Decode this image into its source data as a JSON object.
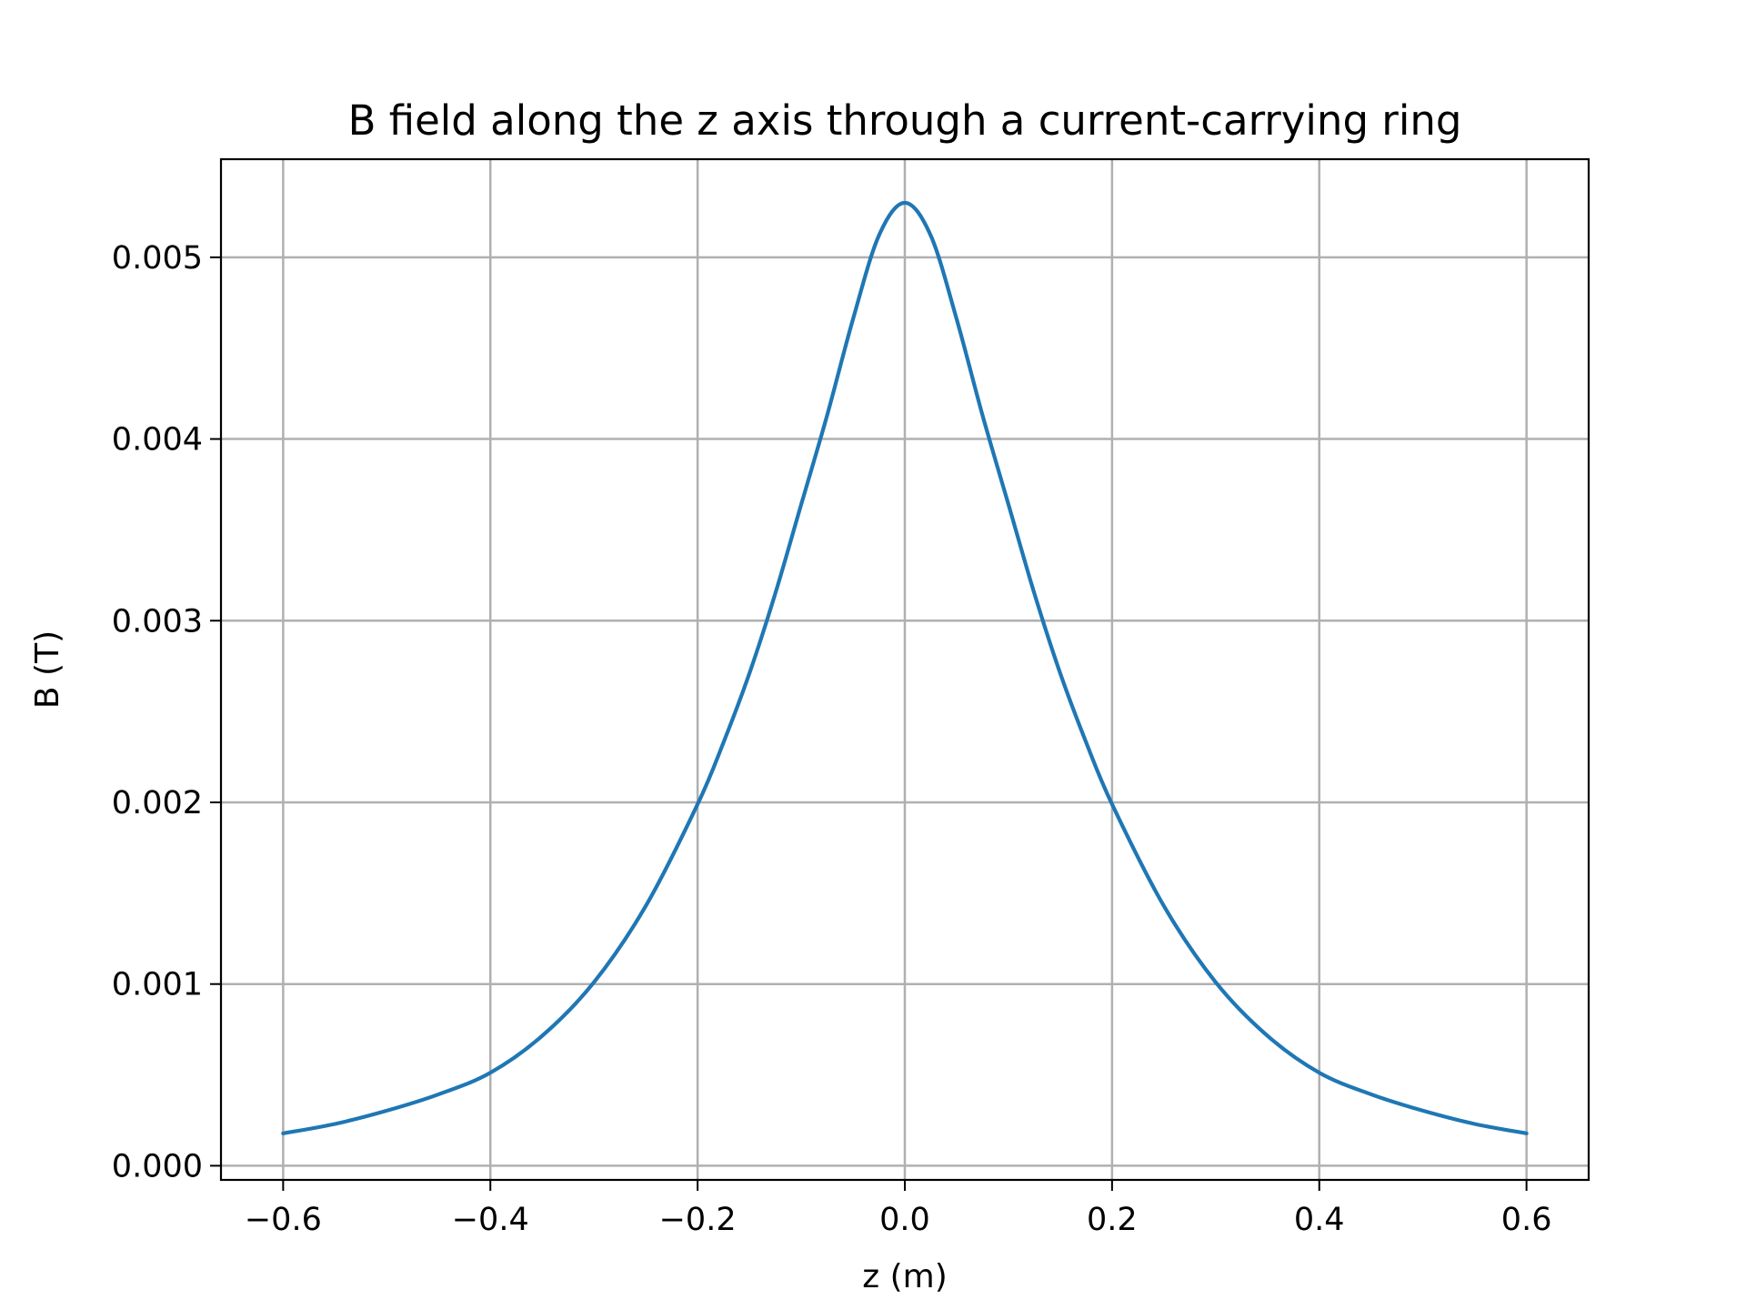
{
  "chart_data": {
    "type": "line",
    "title": "B field along the z axis through a current-carrying ring",
    "xlabel": "z (m)",
    "ylabel": "B (T)",
    "xlim": [
      -0.66,
      0.66
    ],
    "ylim": [
      -7.8e-05,
      0.00554
    ],
    "xticks": [
      -0.6,
      -0.4,
      -0.2,
      0.0,
      0.2,
      0.4,
      0.6
    ],
    "xtick_labels": [
      "−0.6",
      "−0.4",
      "−0.2",
      "0.0",
      "0.2",
      "0.4",
      "0.6"
    ],
    "yticks": [
      0.0,
      0.001,
      0.002,
      0.003,
      0.004,
      0.005
    ],
    "ytick_labels": [
      "0.000",
      "0.001",
      "0.002",
      "0.003",
      "0.004",
      "0.005"
    ],
    "grid": true,
    "colors": {
      "series": "#1f77b4",
      "grid": "#b0b0b0",
      "axes": "#000000"
    },
    "series": [
      {
        "x": [
          -0.6,
          -0.55,
          -0.5,
          -0.45,
          -0.4,
          -0.35,
          -0.3,
          -0.25,
          -0.2,
          -0.175,
          -0.15,
          -0.125,
          -0.1,
          -0.075,
          -0.05,
          -0.025,
          0.0,
          0.025,
          0.05,
          0.075,
          0.1,
          0.125,
          0.15,
          0.175,
          0.2,
          0.25,
          0.3,
          0.35,
          0.4,
          0.45,
          0.5,
          0.55,
          0.6
        ],
        "y": [
          0.000178,
          0.00023,
          0.000303,
          0.000393,
          0.000512,
          0.000715,
          0.00101,
          0.00143,
          0.00199,
          0.00233,
          0.00271,
          0.00315,
          0.00364,
          0.00413,
          0.00466,
          0.00512,
          0.0053,
          0.00512,
          0.00466,
          0.00413,
          0.00364,
          0.00315,
          0.00271,
          0.00233,
          0.00199,
          0.00143,
          0.00101,
          0.000715,
          0.000512,
          0.000393,
          0.000303,
          0.00023,
          0.000178
        ]
      }
    ]
  }
}
